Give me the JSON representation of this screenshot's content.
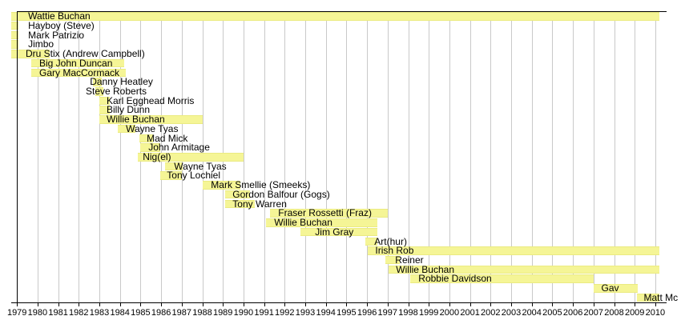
{
  "chart_data": {
    "type": "timeline",
    "description_visible_text_only": true,
    "x_axis": {
      "range": [
        1978.72,
        2010.55
      ],
      "tick_years": [
        1979,
        1980,
        1981,
        1982,
        1983,
        1984,
        1985,
        1986,
        1987,
        1988,
        1989,
        1990,
        1991,
        1992,
        1993,
        1994,
        1995,
        1996,
        1997,
        1998,
        1999,
        2000,
        2001,
        2002,
        2003,
        2004,
        2005,
        2006,
        2007,
        2008,
        2009,
        2010
      ],
      "tick_labels": [
        "1979",
        "1980",
        "1981",
        "1982",
        "1983",
        "1984",
        "1985",
        "1986",
        "1987",
        "1988",
        "1989",
        "1990",
        "1991",
        "1992",
        "1993",
        "1994",
        "1995",
        "1996",
        "1997",
        "1998",
        "1999",
        "2000",
        "2001",
        "2002",
        "2003",
        "2004",
        "2005",
        "2006",
        "2007",
        "2008",
        "2009",
        "2010"
      ]
    },
    "colors": {
      "bar": "#f5f596",
      "bar_edge": "#ebeb82",
      "grid": "#c9c9c9",
      "axis": "#000000",
      "background": "#ffffff",
      "text": "#000000"
    },
    "legend": "none",
    "grid": "on",
    "members": [
      {
        "label": "Wattie Buchan",
        "from": 1978.72,
        "till": 2010.2,
        "label_at": 1979.54
      },
      {
        "label": "Hayboy (Steve)",
        "from": 1978.72,
        "till": 1979.05,
        "label_at": 1979.54
      },
      {
        "label": "Mark Patrizio",
        "from": 1978.72,
        "till": 1979.05,
        "label_at": 1979.54
      },
      {
        "label": "Jimbo",
        "from": 1978.72,
        "till": 1979.05,
        "label_at": 1979.54
      },
      {
        "label": "Dru Stix (Andrew Campbell)",
        "from": 1978.72,
        "till": 1980.6,
        "label_at": 1979.42
      },
      {
        "label": "Big John Duncan",
        "from": 1979.7,
        "till": 1984.2,
        "label_at": 1980.08
      },
      {
        "label": "Gary MacCormack",
        "from": 1979.7,
        "till": 1984.3,
        "label_at": 1980.08
      },
      {
        "label": "Danny Heatley",
        "from": 1982.7,
        "till": 1983.1,
        "label_at": 1982.54
      },
      {
        "label": "Steve Roberts",
        "from": 1982.8,
        "till": 1983.2,
        "label_at": 1982.34
      },
      {
        "label": "Karl Egghead Morris",
        "from": 1983.0,
        "till": 1983.5,
        "label_at": 1983.35
      },
      {
        "label": "Billy Dunn",
        "from": 1983.0,
        "till": 1983.5,
        "label_at": 1983.35
      },
      {
        "label": "Willie Buchan",
        "from": 1983.0,
        "till": 1988.0,
        "label_at": 1983.35
      },
      {
        "label": "Wayne Tyas",
        "from": 1983.9,
        "till": 1984.75,
        "label_at": 1984.29
      },
      {
        "label": "Mad Mick",
        "from": 1984.95,
        "till": 1985.6,
        "label_at": 1985.3
      },
      {
        "label": "John Armitage",
        "from": 1985.0,
        "till": 1985.95,
        "label_at": 1985.38
      },
      {
        "label": "Nig(el)",
        "from": 1984.87,
        "till": 1990.0,
        "label_at": 1985.11
      },
      {
        "label": "Wayne Tyas",
        "from": 1986.2,
        "till": 1987.05,
        "label_at": 1986.63
      },
      {
        "label": "Tony Lochiel",
        "from": 1985.95,
        "till": 1987.0,
        "label_at": 1986.28
      },
      {
        "label": "Mark Smellie (Smeeks)",
        "from": 1988.0,
        "till": 1989.85,
        "label_at": 1988.42
      },
      {
        "label": "Gordon Balfour (Gogs)",
        "from": 1989.1,
        "till": 1990.3,
        "label_at": 1989.47
      },
      {
        "label": "Tony Warren",
        "from": 1989.1,
        "till": 1990.55,
        "label_at": 1989.47
      },
      {
        "label": "Fraser Rossetti (Fraz)",
        "from": 1991.3,
        "till": 1997.0,
        "label_at": 1991.69
      },
      {
        "label": "Willie Buchan",
        "from": 1991.1,
        "till": 1996.5,
        "label_at": 1991.49
      },
      {
        "label": "Jim Gray",
        "from": 1992.75,
        "till": 1996.5,
        "label_at": 1993.48
      },
      {
        "label": "Art(hur)",
        "from": 1995.9,
        "till": 1996.5,
        "label_at": 1996.36
      },
      {
        "label": "Irish Rob",
        "from": 1996.05,
        "till": 2010.2,
        "label_at": 1996.4
      },
      {
        "label": "Reiner",
        "from": 1996.9,
        "till": 1997.6,
        "label_at": 1997.37
      },
      {
        "label": "Willie Buchan",
        "from": 1997.05,
        "till": 2010.2,
        "label_at": 1997.41
      },
      {
        "label": "Robbie Davidson",
        "from": 1998.1,
        "till": 2007.0,
        "label_at": 1998.5
      },
      {
        "label": "Gav",
        "from": 2007.0,
        "till": 2009.15,
        "label_at": 2007.38
      },
      {
        "label": "Matt Mc",
        "from": 2009.1,
        "till": 2010.2,
        "label_at": 2009.44
      }
    ]
  }
}
